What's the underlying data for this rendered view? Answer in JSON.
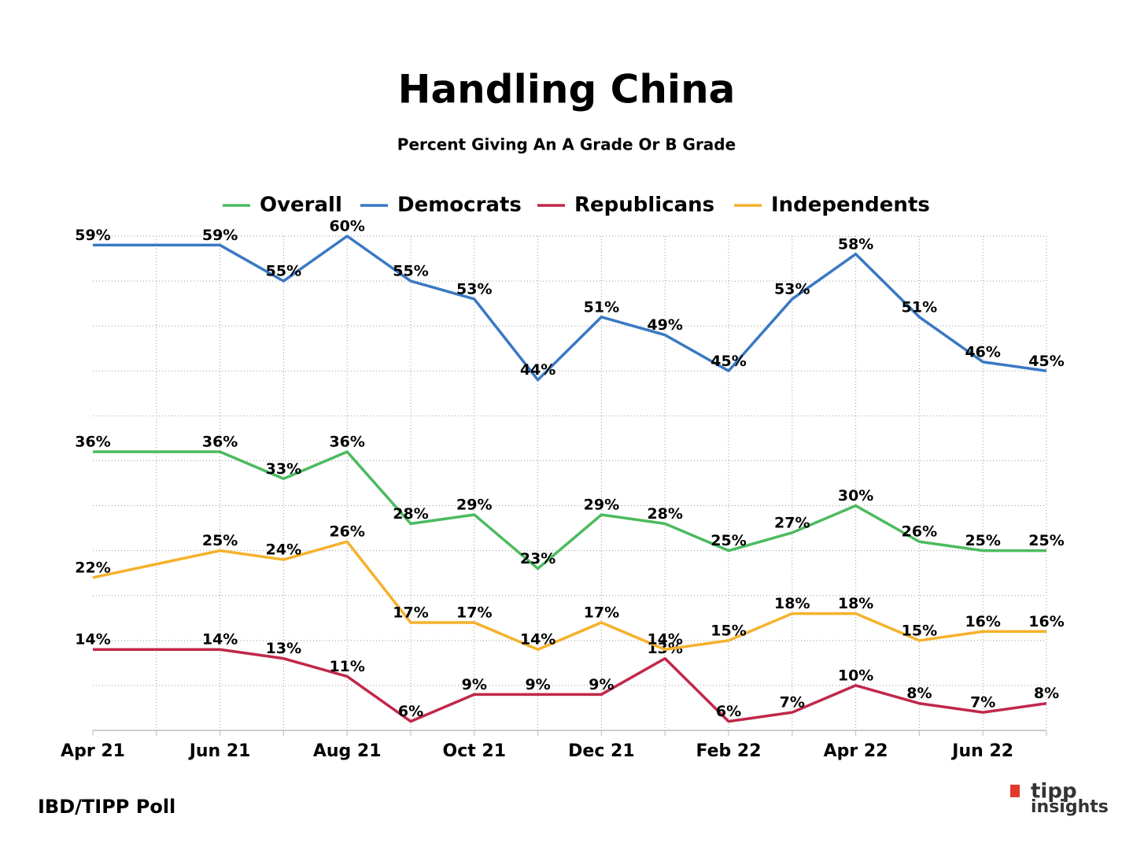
{
  "chart_data": {
    "type": "line",
    "title": "Handling China",
    "subtitle": "Percent Giving An A Grade Or B Grade",
    "categories": [
      "Apr 21",
      null,
      "Jun 21",
      null,
      "Aug 21",
      null,
      "Oct 21",
      null,
      "Dec 21",
      null,
      "Feb 22",
      null,
      "Apr 22",
      null,
      "Jun 22",
      null
    ],
    "series": [
      {
        "name": "Overall",
        "color": "#4cbb5f",
        "values": [
          36,
          36,
          36,
          33,
          36,
          28,
          29,
          23,
          29,
          28,
          25,
          27,
          30,
          26,
          25,
          25
        ],
        "value_labels": [
          "36%",
          null,
          "36%",
          "33%",
          "36%",
          "28%",
          "29%",
          "23%",
          "29%",
          "28%",
          "25%",
          "27%",
          "30%",
          "26%",
          "25%",
          "25%"
        ]
      },
      {
        "name": "Democrats",
        "color": "#3a78c3",
        "values": [
          59,
          59,
          59,
          55,
          60,
          55,
          53,
          44,
          51,
          49,
          45,
          53,
          58,
          51,
          46,
          45
        ],
        "value_labels": [
          "59%",
          null,
          "59%",
          "55%",
          "60%",
          "55%",
          "53%",
          "44%",
          "51%",
          "49%",
          "45%",
          "53%",
          "58%",
          "51%",
          "46%",
          "45%"
        ]
      },
      {
        "name": "Republicans",
        "color": "#c0284a",
        "values": [
          14,
          14,
          14,
          13,
          11,
          6,
          9,
          9,
          9,
          13,
          6,
          7,
          10,
          8,
          7,
          8
        ],
        "value_labels": [
          "14%",
          null,
          "14%",
          "13%",
          "11%",
          "6%",
          "9%",
          "9%",
          "9%",
          "13%",
          "6%",
          "7%",
          "10%",
          "8%",
          "7%",
          "8%"
        ]
      },
      {
        "name": "Independents",
        "color": "#f6b12b",
        "values": [
          22,
          23.5,
          25,
          24,
          26,
          17,
          17,
          14,
          17,
          14,
          15,
          18,
          18,
          15,
          16,
          16
        ],
        "value_labels": [
          "22%",
          null,
          "25%",
          "24%",
          "26%",
          "17%",
          "17%",
          "14%",
          "17%",
          "14%",
          "15%",
          "18%",
          "18%",
          "15%",
          "16%",
          "16%"
        ]
      }
    ],
    "ylim": [
      5,
      60
    ],
    "yticks": [
      5,
      10,
      15,
      20,
      25,
      30,
      35,
      40,
      45,
      50,
      55,
      60
    ],
    "grid": true,
    "source": "IBD/TIPP Poll",
    "logo": {
      "line1": "tipp",
      "line2": "insights"
    }
  }
}
